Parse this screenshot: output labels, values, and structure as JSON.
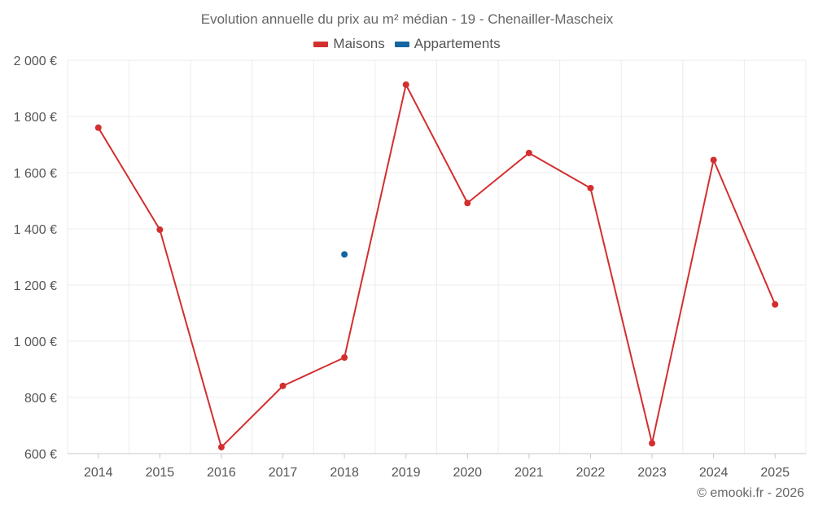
{
  "chart_data": {
    "type": "line",
    "title": "Evolution annuelle du prix au m² médian - 19 - Chenailler-Mascheix",
    "categories": [
      "2014",
      "2015",
      "2016",
      "2017",
      "2018",
      "2019",
      "2020",
      "2021",
      "2022",
      "2023",
      "2024",
      "2025"
    ],
    "series": [
      {
        "name": "Maisons",
        "color": "#d32f2f",
        "values": [
          1760,
          1397,
          623,
          841,
          942,
          1913,
          1492,
          1670,
          1545,
          637,
          1645,
          1131
        ]
      },
      {
        "name": "Appartements",
        "color": "#1565a0",
        "values": [
          null,
          null,
          null,
          null,
          1309,
          null,
          null,
          null,
          null,
          null,
          null,
          null
        ]
      }
    ],
    "y_ticks": [
      600,
      800,
      1000,
      1200,
      1400,
      1600,
      1800,
      2000
    ],
    "y_tick_labels": [
      "600 €",
      "800 €",
      "1 000 €",
      "1 200 €",
      "1 400 €",
      "1 600 €",
      "1 800 €",
      "2 000 €"
    ],
    "ylim": [
      600,
      2000
    ],
    "legend_position": "top-center",
    "grid": true
  },
  "credit": "© emooki.fr - 2026"
}
